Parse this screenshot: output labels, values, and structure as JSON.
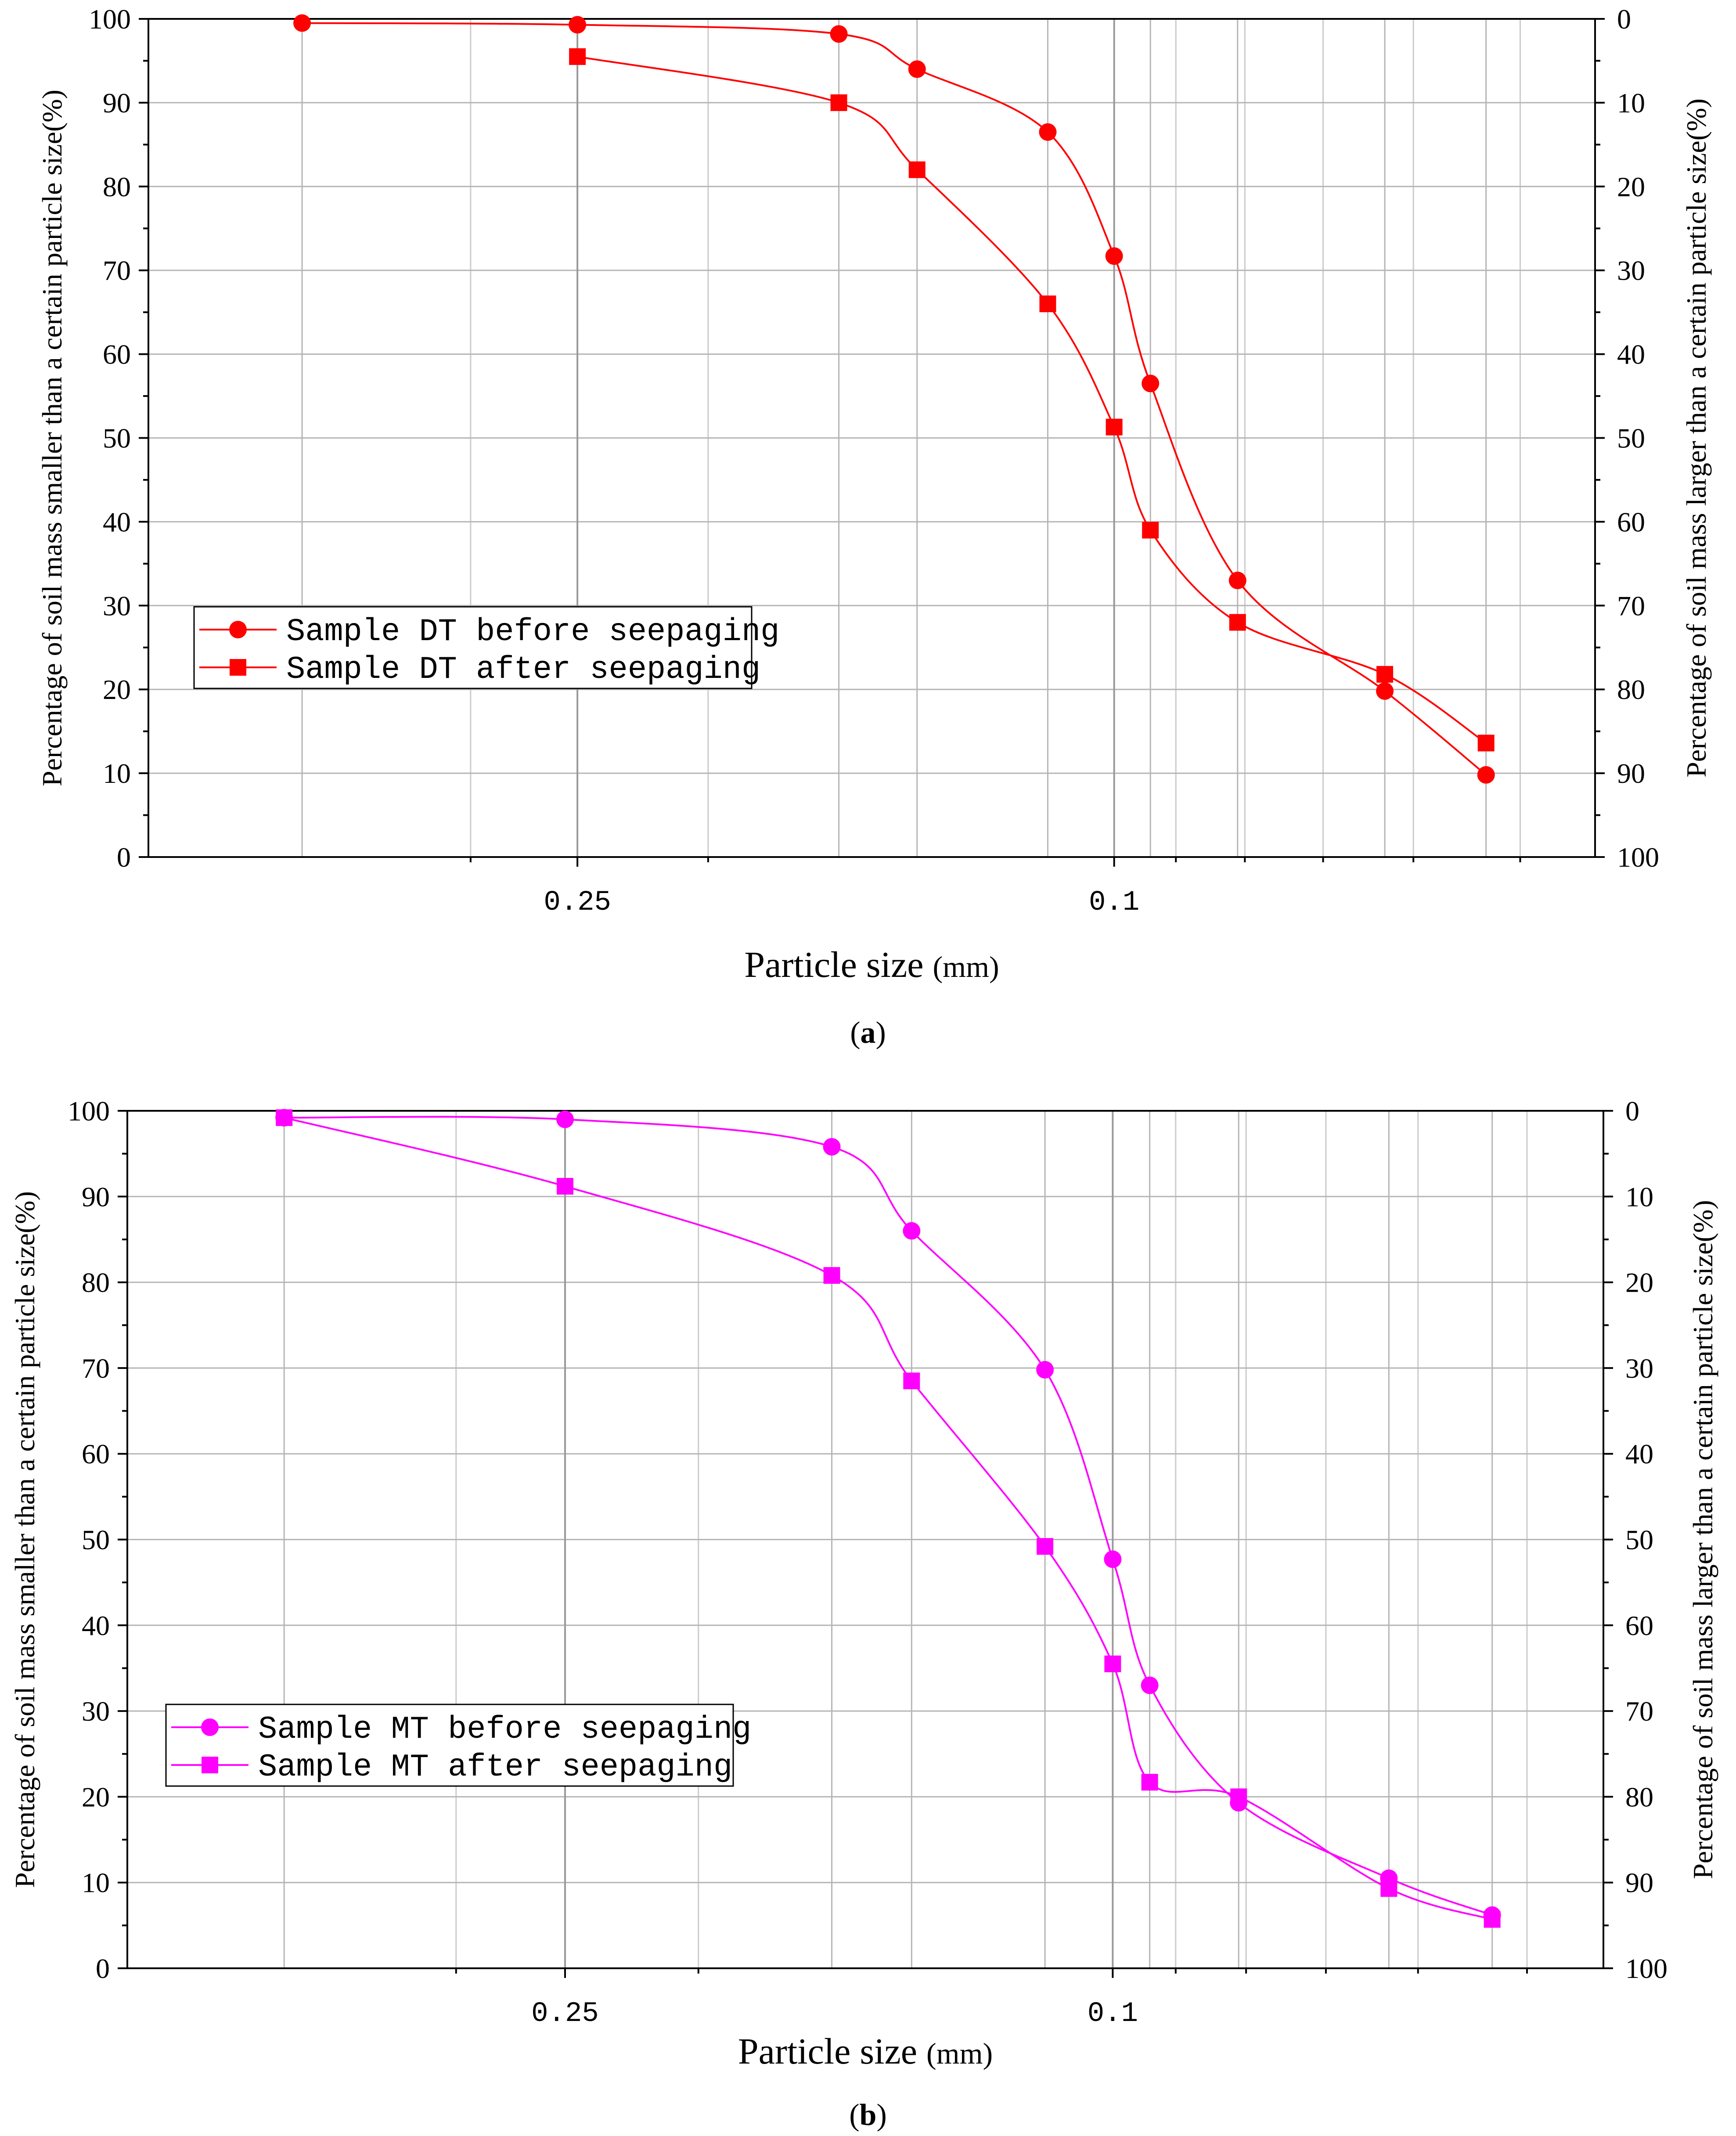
{
  "chart_data": [
    {
      "panel_label": "a",
      "type": "line",
      "color": "#ff0000",
      "xlabel": "Particle size",
      "xlabel_unit": "(mm)",
      "ylabel_left": "Percentage of soil mass smaller than a certain particle size(%)",
      "ylabel_right": "Percentage of soil mass larger than a certain particle size(%)",
      "x_scale": "log-reversed",
      "xlim": [
        0.52,
        0.044
      ],
      "ylim": [
        0,
        100
      ],
      "x_ticks": [
        {
          "value": 0.25,
          "label": "0.25"
        },
        {
          "value": 0.1,
          "label": "0.1"
        }
      ],
      "x_minor_ticks": [
        0.3,
        0.2,
        0.09,
        0.08,
        0.07,
        0.06,
        0.05
      ],
      "y_left_ticks": [
        "0",
        "10",
        "20",
        "30",
        "40",
        "50",
        "60",
        "70",
        "80",
        "90",
        "100"
      ],
      "y_right_ticks": [
        "100",
        "90",
        "80",
        "70",
        "60",
        "50",
        "40",
        "30",
        "20",
        "10",
        "0"
      ],
      "legend_position": "lower-left",
      "series": [
        {
          "name": "Sample DT before seepaging",
          "marker": "circle",
          "x": [
            0.4,
            0.25,
            0.16,
            0.14,
            0.112,
            0.1,
            0.094,
            0.081,
            0.063,
            0.053
          ],
          "values": [
            99.5,
            99.3,
            98.2,
            94.0,
            86.5,
            71.7,
            56.5,
            33.0,
            19.8,
            9.8
          ]
        },
        {
          "name": "Sample DT after seepaging",
          "marker": "square",
          "x": [
            0.25,
            0.16,
            0.14,
            0.112,
            0.1,
            0.094,
            0.081,
            0.063,
            0.053
          ],
          "values": [
            95.5,
            90.0,
            82.0,
            66.0,
            51.3,
            39.0,
            28.0,
            21.8,
            13.6
          ]
        }
      ]
    },
    {
      "panel_label": "b",
      "type": "line",
      "color": "#ff00ff",
      "xlabel": "Particle size",
      "xlabel_unit": "(mm)",
      "ylabel_left": "Percentage of soil mass smaller than a certain particle size(%)",
      "ylabel_right": "Percentage of soil mass larger than a certain particle size(%)",
      "x_scale": "log-reversed",
      "xlim": [
        0.52,
        0.044
      ],
      "ylim": [
        0,
        100
      ],
      "x_ticks": [
        {
          "value": 0.25,
          "label": "0.25"
        },
        {
          "value": 0.1,
          "label": "0.1"
        }
      ],
      "x_minor_ticks": [
        0.3,
        0.2,
        0.09,
        0.08,
        0.07,
        0.06,
        0.05
      ],
      "y_left_ticks": [
        "0",
        "10",
        "20",
        "30",
        "40",
        "50",
        "60",
        "70",
        "80",
        "90",
        "100"
      ],
      "y_right_ticks": [
        "100",
        "90",
        "80",
        "70",
        "60",
        "50",
        "40",
        "30",
        "20",
        "10",
        "0"
      ],
      "legend_position": "lower-left",
      "series": [
        {
          "name": "Sample MT before seepaging",
          "marker": "circle",
          "x": [
            0.4,
            0.25,
            0.16,
            0.14,
            0.112,
            0.1,
            0.094,
            0.081,
            0.063,
            0.053
          ],
          "values": [
            99.2,
            99.0,
            95.8,
            86.0,
            69.8,
            47.7,
            33.0,
            19.3,
            10.5,
            6.2
          ]
        },
        {
          "name": "Sample MT after seepaging",
          "marker": "square",
          "x": [
            0.4,
            0.25,
            0.16,
            0.14,
            0.112,
            0.1,
            0.094,
            0.081,
            0.063,
            0.053
          ],
          "values": [
            99.2,
            91.2,
            80.8,
            68.5,
            49.2,
            35.5,
            21.7,
            20.0,
            9.3,
            5.7
          ]
        }
      ]
    }
  ]
}
